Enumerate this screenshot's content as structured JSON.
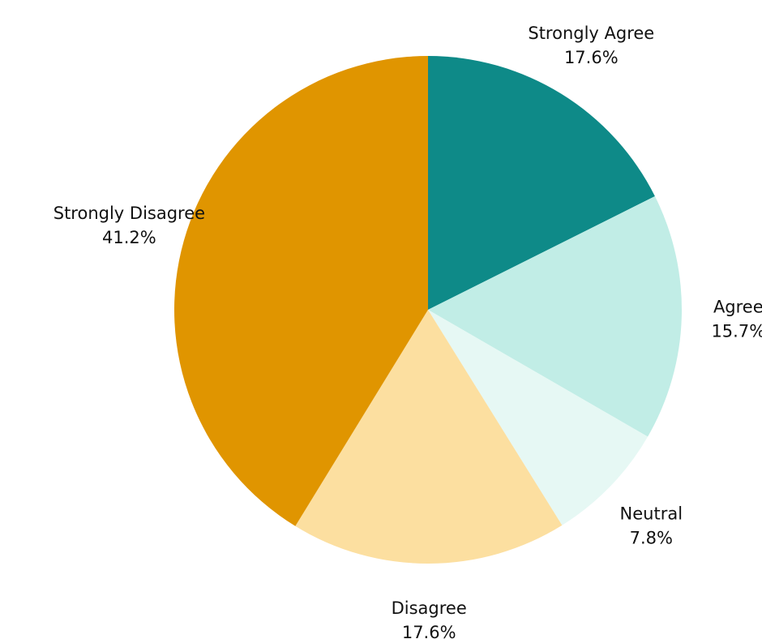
{
  "chart_data": {
    "type": "pie",
    "title": "",
    "start_angle_deg": 0,
    "direction": "clockwise",
    "slices": [
      {
        "label": "Strongly Agree",
        "value": 17.6,
        "display": "17.6%",
        "color": "#0e8a88"
      },
      {
        "label": "Agree",
        "value": 15.7,
        "display": "15.7%",
        "color": "#c1ede6"
      },
      {
        "label": "Neutral",
        "value": 7.8,
        "display": "7.8%",
        "color": "#e6f8f4"
      },
      {
        "label": "Disagree",
        "value": 17.6,
        "display": "17.6%",
        "color": "#fcdfa0"
      },
      {
        "label": "Strongly Disagree",
        "value": 41.2,
        "display": "41.2%",
        "color": "#e09500"
      }
    ]
  }
}
